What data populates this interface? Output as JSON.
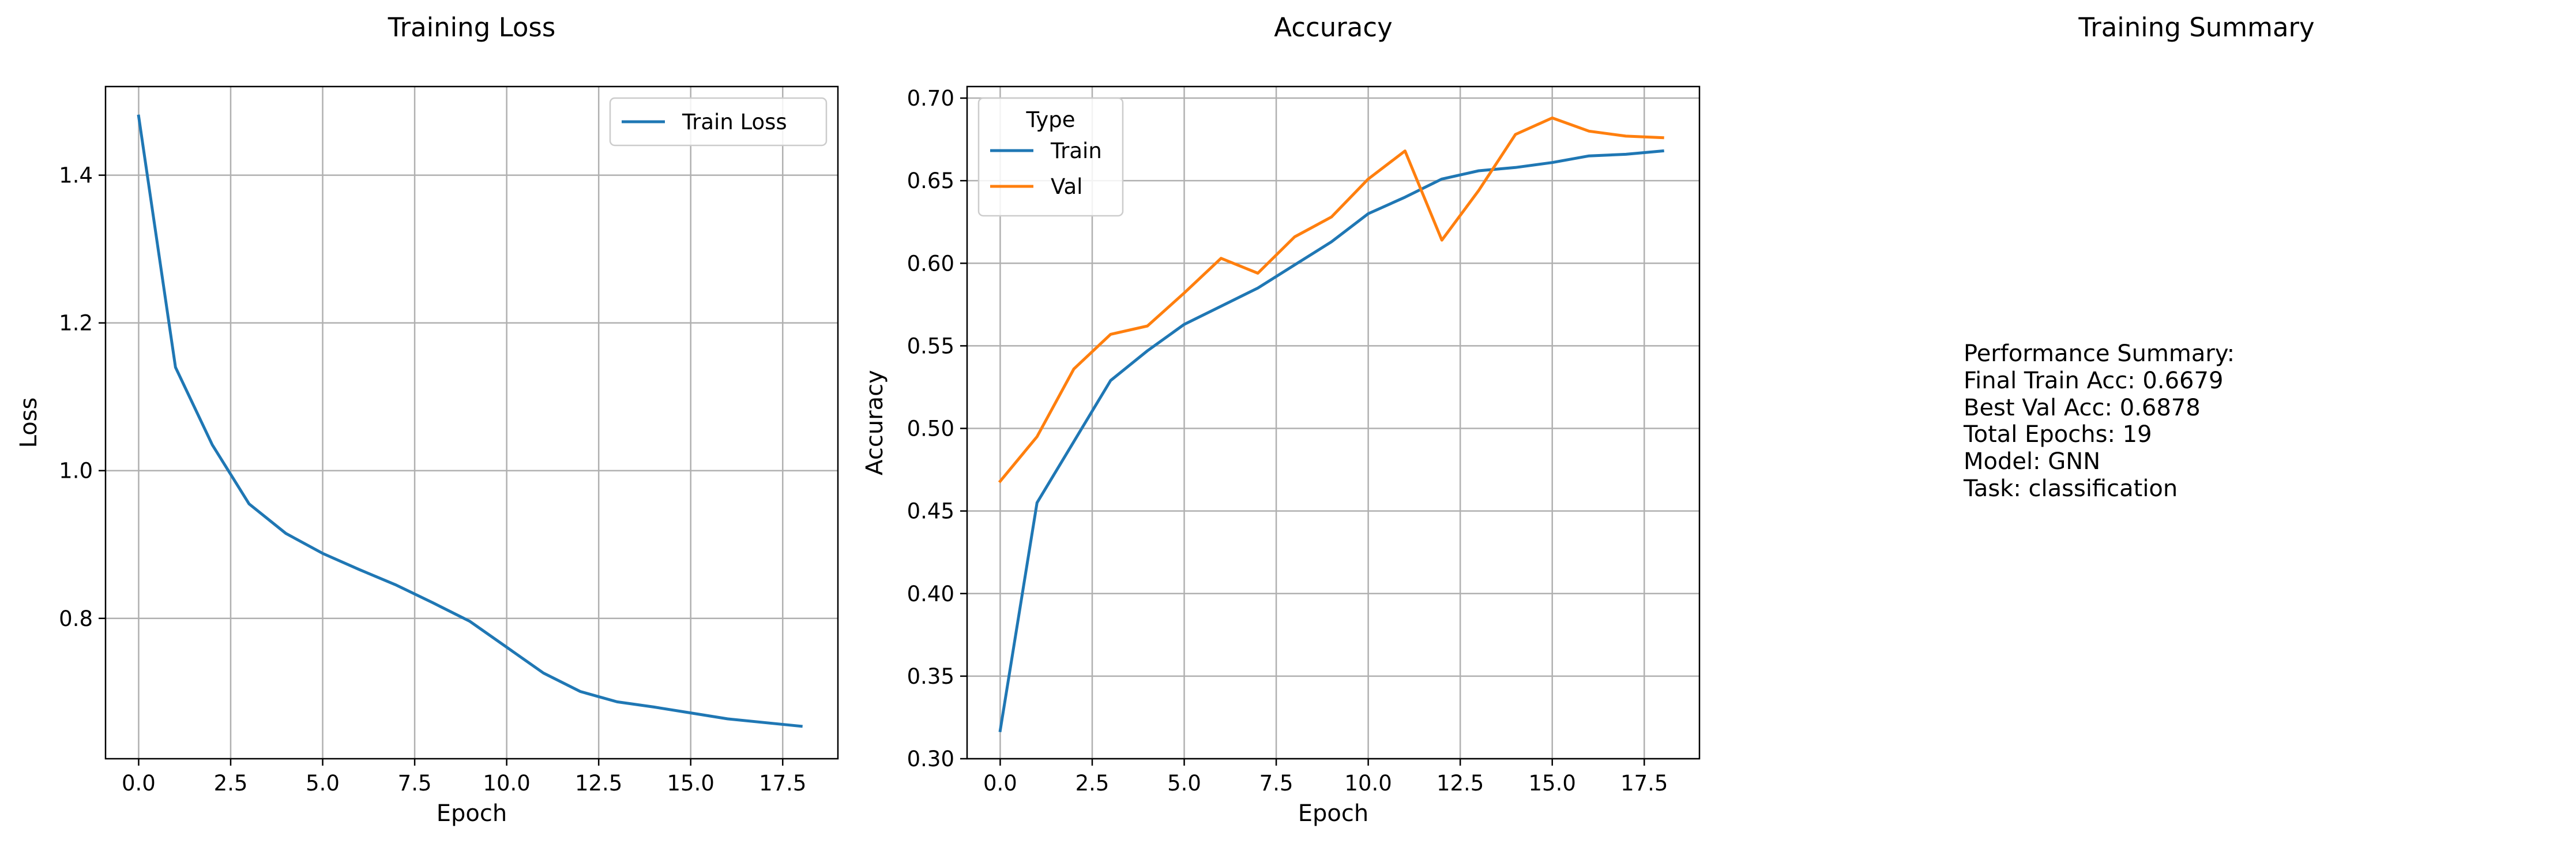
{
  "chart_data": [
    {
      "type": "line",
      "title": "Training Loss",
      "xlabel": "Epoch",
      "ylabel": "Loss",
      "xlim": [
        -0.9,
        19.0
      ],
      "ylim": [
        0.61,
        1.52
      ],
      "xticks": [
        0.0,
        2.5,
        5.0,
        7.5,
        10.0,
        12.5,
        15.0,
        17.5
      ],
      "xtick_labels": [
        "0.0",
        "2.5",
        "5.0",
        "7.5",
        "10.0",
        "12.5",
        "15.0",
        "17.5"
      ],
      "yticks": [
        0.8,
        1.0,
        1.2,
        1.4
      ],
      "ytick_labels": [
        "0.8",
        "1.0",
        "1.2",
        "1.4"
      ],
      "grid": true,
      "legend": {
        "location": "upper right"
      },
      "x": [
        0,
        1,
        2,
        3,
        4,
        5,
        6,
        7,
        8,
        9,
        10,
        11,
        12,
        13,
        14,
        15,
        16,
        17,
        18
      ],
      "series": [
        {
          "name": "Train Loss",
          "color": "#1f77b4",
          "values": [
            1.48,
            1.14,
            1.035,
            0.955,
            0.915,
            0.888,
            0.866,
            0.845,
            0.821,
            0.796,
            0.761,
            0.726,
            0.701,
            0.687,
            0.68,
            0.672,
            0.664,
            0.659,
            0.654
          ]
        }
      ]
    },
    {
      "type": "line",
      "title": "Accuracy",
      "xlabel": "Epoch",
      "ylabel": "Accuracy",
      "xlim": [
        -0.9,
        19.0
      ],
      "ylim": [
        0.3,
        0.707
      ],
      "xticks": [
        0.0,
        2.5,
        5.0,
        7.5,
        10.0,
        12.5,
        15.0,
        17.5
      ],
      "xtick_labels": [
        "0.0",
        "2.5",
        "5.0",
        "7.5",
        "10.0",
        "12.5",
        "15.0",
        "17.5"
      ],
      "yticks": [
        0.3,
        0.35,
        0.4,
        0.45,
        0.5,
        0.55,
        0.6,
        0.65,
        0.7
      ],
      "ytick_labels": [
        "0.30",
        "0.35",
        "0.40",
        "0.45",
        "0.50",
        "0.55",
        "0.60",
        "0.65",
        "0.70"
      ],
      "grid": true,
      "legend": {
        "title": "Type",
        "location": "upper left"
      },
      "x": [
        0,
        1,
        2,
        3,
        4,
        5,
        6,
        7,
        8,
        9,
        10,
        11,
        12,
        13,
        14,
        15,
        16,
        17,
        18
      ],
      "series": [
        {
          "name": "Train",
          "color": "#1f77b4",
          "values": [
            0.317,
            0.455,
            0.492,
            0.529,
            0.547,
            0.563,
            0.574,
            0.585,
            0.599,
            0.613,
            0.63,
            0.64,
            0.651,
            0.656,
            0.658,
            0.661,
            0.665,
            0.666,
            0.668
          ]
        },
        {
          "name": "Val",
          "color": "#ff7f0e",
          "values": [
            0.468,
            0.495,
            0.536,
            0.557,
            0.562,
            0.582,
            0.603,
            0.594,
            0.616,
            0.628,
            0.651,
            0.668,
            0.614,
            0.644,
            0.678,
            0.688,
            0.68,
            0.677,
            0.676
          ]
        }
      ]
    }
  ],
  "summary_panel": {
    "title": "Training Summary",
    "lines": [
      "Performance Summary:",
      "Final Train Acc: 0.6679",
      "Best Val Acc: 0.6878",
      "Total Epochs: 19",
      "Model: GNN",
      "Task: classification"
    ]
  }
}
